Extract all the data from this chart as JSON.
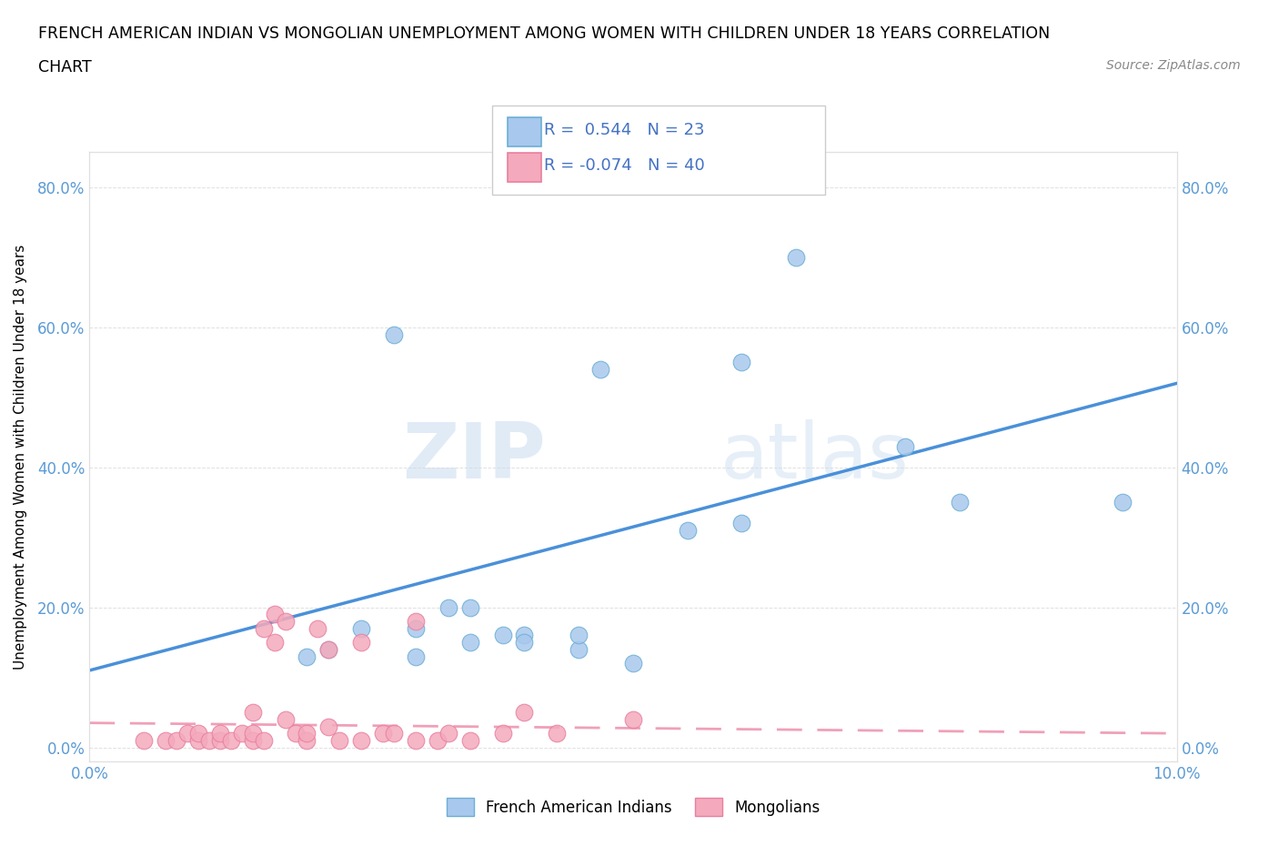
{
  "title_line1": "FRENCH AMERICAN INDIAN VS MONGOLIAN UNEMPLOYMENT AMONG WOMEN WITH CHILDREN UNDER 18 YEARS CORRELATION",
  "title_line2": "CHART",
  "source": "Source: ZipAtlas.com",
  "ylabel": "Unemployment Among Women with Children Under 18 years",
  "xlim": [
    0.0,
    0.1
  ],
  "ylim": [
    -0.02,
    0.85
  ],
  "x_ticks": [
    0.0,
    0.02,
    0.04,
    0.06,
    0.08,
    0.1
  ],
  "y_ticks": [
    0.0,
    0.2,
    0.4,
    0.6,
    0.8
  ],
  "r_blue": 0.544,
  "n_blue": 23,
  "r_pink": -0.074,
  "n_pink": 40,
  "blue_color": "#A8C8ED",
  "pink_color": "#F4AABC",
  "blue_edge_color": "#6BAED6",
  "pink_edge_color": "#E87FA0",
  "blue_line_color": "#4A90D9",
  "pink_line_color": "#F0A0B8",
  "watermark_zip": "ZIP",
  "watermark_atlas": "atlas",
  "french_x": [
    0.045,
    0.028,
    0.047,
    0.065,
    0.06,
    0.025,
    0.03,
    0.035,
    0.04,
    0.055,
    0.06,
    0.075,
    0.03,
    0.04,
    0.045,
    0.02,
    0.035,
    0.033,
    0.038,
    0.022,
    0.08,
    0.095,
    0.05
  ],
  "french_y": [
    0.14,
    0.59,
    0.54,
    0.7,
    0.55,
    0.17,
    0.17,
    0.2,
    0.16,
    0.31,
    0.32,
    0.43,
    0.13,
    0.15,
    0.16,
    0.13,
    0.15,
    0.2,
    0.16,
    0.14,
    0.35,
    0.35,
    0.12
  ],
  "mongol_x": [
    0.005,
    0.007,
    0.008,
    0.009,
    0.01,
    0.01,
    0.011,
    0.012,
    0.012,
    0.013,
    0.014,
    0.015,
    0.015,
    0.015,
    0.016,
    0.016,
    0.017,
    0.017,
    0.018,
    0.018,
    0.019,
    0.02,
    0.02,
    0.021,
    0.022,
    0.022,
    0.023,
    0.025,
    0.025,
    0.027,
    0.028,
    0.03,
    0.03,
    0.032,
    0.033,
    0.035,
    0.038,
    0.04,
    0.043,
    0.05
  ],
  "mongol_y": [
    0.01,
    0.01,
    0.01,
    0.02,
    0.01,
    0.02,
    0.01,
    0.01,
    0.02,
    0.01,
    0.02,
    0.01,
    0.02,
    0.05,
    0.01,
    0.17,
    0.15,
    0.19,
    0.04,
    0.18,
    0.02,
    0.01,
    0.02,
    0.17,
    0.03,
    0.14,
    0.01,
    0.01,
    0.15,
    0.02,
    0.02,
    0.01,
    0.18,
    0.01,
    0.02,
    0.01,
    0.02,
    0.05,
    0.02,
    0.04
  ],
  "blue_line_x": [
    0.0,
    0.1
  ],
  "blue_line_y": [
    0.11,
    0.52
  ],
  "pink_line_x": [
    0.0,
    0.1
  ],
  "pink_line_y": [
    0.035,
    0.02
  ]
}
